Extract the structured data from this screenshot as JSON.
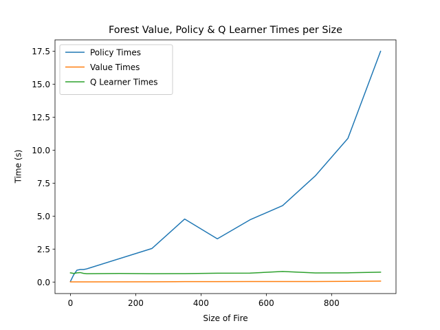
{
  "chart_data": {
    "type": "line",
    "title": "Forest Value, Policy & Q Learner Times per Size",
    "xlabel": "Size of Fire",
    "ylabel": "Time (s)",
    "xlim": [
      -47.25,
      997.25
    ],
    "ylim": [
      -0.873,
      18.366
    ],
    "xticks": [
      0,
      200,
      400,
      600,
      800
    ],
    "xtick_labels": [
      "0",
      "200",
      "400",
      "600",
      "800"
    ],
    "yticks": [
      0.0,
      2.5,
      5.0,
      7.5,
      10.0,
      12.5,
      15.0,
      17.5
    ],
    "ytick_labels": [
      "0.0",
      "2.5",
      "5.0",
      "7.5",
      "10.0",
      "12.5",
      "15.0",
      "17.5"
    ],
    "grid": false,
    "legend_position": "top-left",
    "series": [
      {
        "name": "Policy Times",
        "color": "#1f77b4",
        "x": [
          0,
          5,
          10,
          20,
          30,
          40,
          50,
          250,
          350,
          450,
          550,
          650,
          750,
          850,
          950
        ],
        "y": [
          0.05,
          0.3,
          0.55,
          0.9,
          0.95,
          0.95,
          1.0,
          2.55,
          4.78,
          3.28,
          4.72,
          5.8,
          8.05,
          10.9,
          17.5
        ]
      },
      {
        "name": "Value Times",
        "color": "#ff7f0e",
        "x": [
          0,
          5,
          10,
          20,
          30,
          40,
          50,
          250,
          350,
          450,
          550,
          650,
          750,
          850,
          950
        ],
        "y": [
          0.01,
          0.01,
          0.01,
          0.01,
          0.01,
          0.01,
          0.01,
          0.02,
          0.03,
          0.03,
          0.04,
          0.04,
          0.04,
          0.05,
          0.07
        ]
      },
      {
        "name": "Q Learner Times",
        "color": "#2ca02c",
        "x": [
          0,
          5,
          10,
          20,
          30,
          40,
          50,
          150,
          250,
          350,
          450,
          550,
          650,
          750,
          850,
          950
        ],
        "y": [
          0.7,
          0.68,
          0.65,
          0.7,
          0.72,
          0.66,
          0.63,
          0.65,
          0.63,
          0.64,
          0.67,
          0.68,
          0.8,
          0.69,
          0.7,
          0.75
        ]
      }
    ]
  }
}
